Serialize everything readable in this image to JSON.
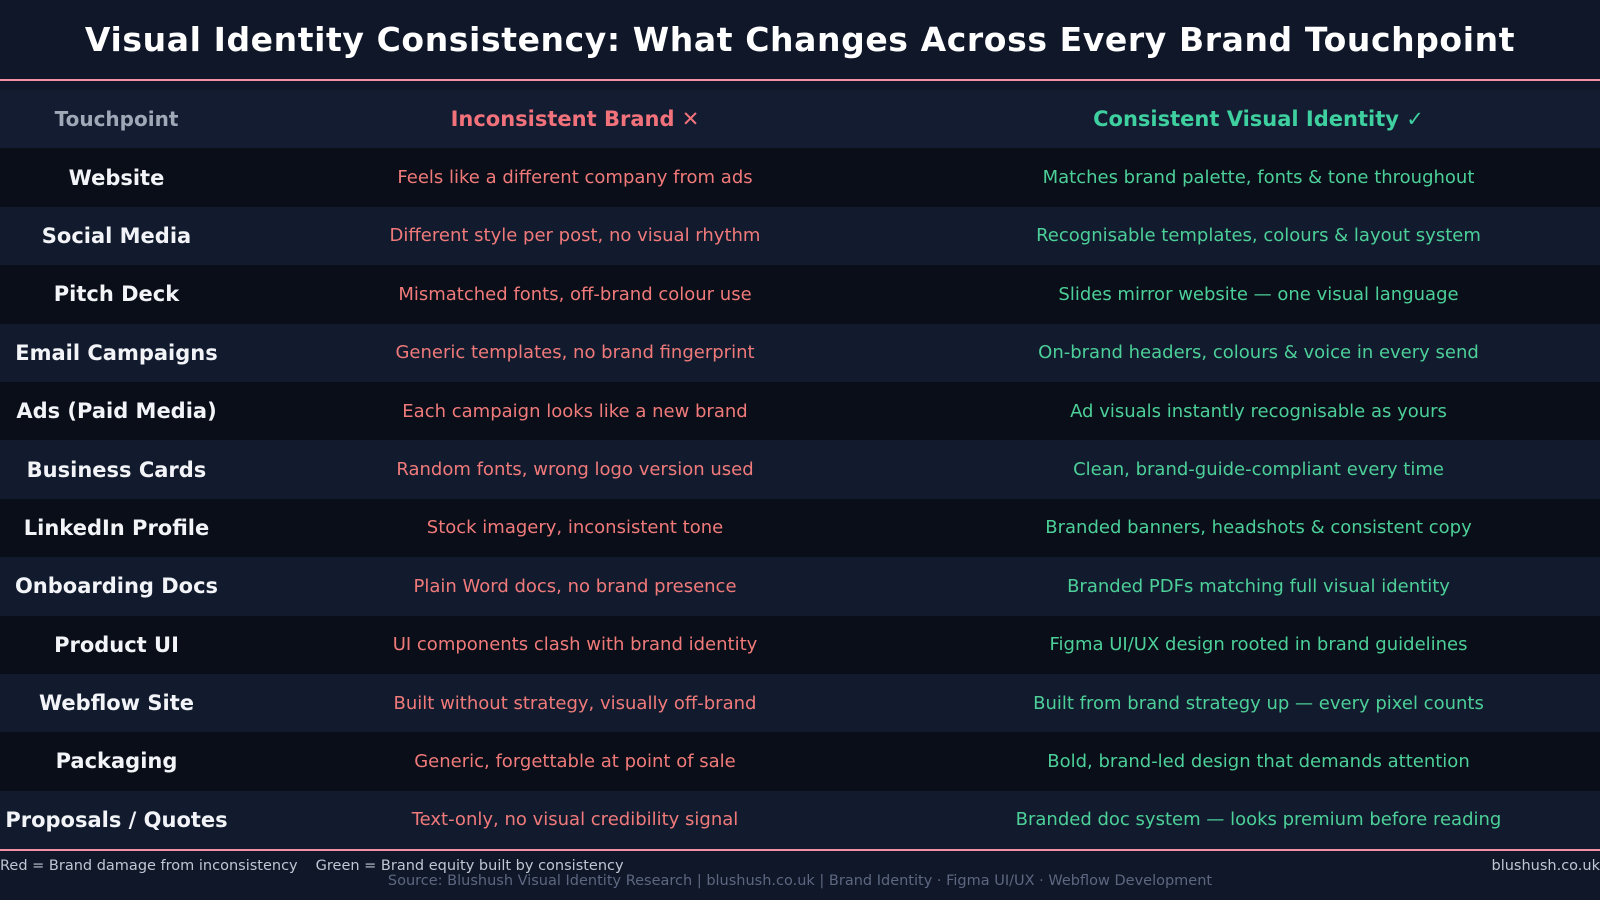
{
  "title": "Visual Identity Consistency: What Changes Across Every Brand Touchpoint",
  "columns": {
    "touchpoint": "Touchpoint",
    "inconsistent": "Inconsistent Brand ✕",
    "consistent": "Consistent Visual Identity ✓"
  },
  "rows": [
    {
      "touchpoint": "Website",
      "inconsistent": "Feels like a different company from ads",
      "consistent": "Matches brand palette, fonts & tone throughout"
    },
    {
      "touchpoint": "Social Media",
      "inconsistent": "Different style per post, no visual rhythm",
      "consistent": "Recognisable templates, colours & layout system"
    },
    {
      "touchpoint": "Pitch Deck",
      "inconsistent": "Mismatched fonts, off-brand colour use",
      "consistent": "Slides mirror website — one visual language"
    },
    {
      "touchpoint": "Email Campaigns",
      "inconsistent": "Generic templates, no brand fingerprint",
      "consistent": "On-brand headers, colours & voice in every send"
    },
    {
      "touchpoint": "Ads (Paid Media)",
      "inconsistent": "Each campaign looks like a new brand",
      "consistent": "Ad visuals instantly recognisable as yours"
    },
    {
      "touchpoint": "Business Cards",
      "inconsistent": "Random fonts, wrong logo version used",
      "consistent": "Clean, brand-guide-compliant every time"
    },
    {
      "touchpoint": "LinkedIn Profile",
      "inconsistent": "Stock imagery, inconsistent tone",
      "consistent": "Branded banners, headshots & consistent copy"
    },
    {
      "touchpoint": "Onboarding Docs",
      "inconsistent": "Plain Word docs, no brand presence",
      "consistent": "Branded PDFs matching full visual identity"
    },
    {
      "touchpoint": "Product UI",
      "inconsistent": "UI components clash with brand identity",
      "consistent": "Figma UI/UX design rooted in brand guidelines"
    },
    {
      "touchpoint": "Webflow Site",
      "inconsistent": "Built without strategy, visually off-brand",
      "consistent": "Built from brand strategy up — every pixel counts"
    },
    {
      "touchpoint": "Packaging",
      "inconsistent": "Generic, forgettable at point of sale",
      "consistent": "Bold, brand-led design that demands attention"
    },
    {
      "touchpoint": "Proposals / Quotes",
      "inconsistent": "Text-only, no visual credibility signal",
      "consistent": "Branded doc system — looks premium before reading"
    }
  ],
  "footer": {
    "legend_red": "Red = Brand damage from inconsistency",
    "legend_green": "Green = Brand equity built by consistency",
    "site": "blushush.co.uk",
    "source": "Source: Blushush Visual Identity Research  |  blushush.co.uk  |  Brand Identity · Figma UI/UX · Webflow Development"
  },
  "colors": {
    "background": "#0f1729",
    "accent_rule": "#f48fa6",
    "inconsistent": "#f07a7a",
    "consistent": "#4ccf98"
  }
}
